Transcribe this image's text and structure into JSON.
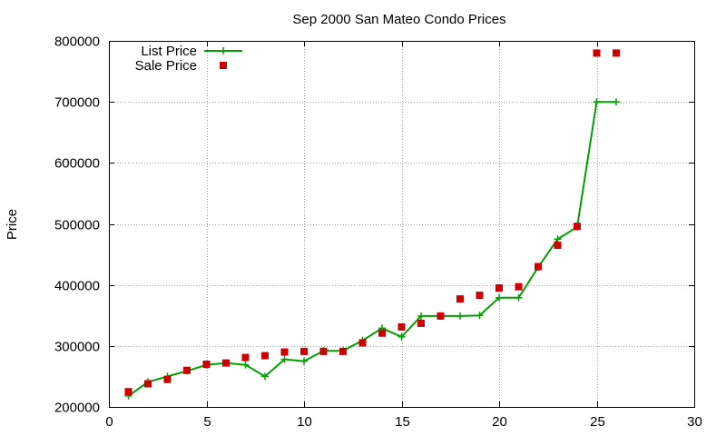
{
  "chart_data": {
    "type": "line",
    "title": "Sep 2000 San Mateo Condo Prices",
    "xlabel": "",
    "ylabel": "Price",
    "xlim": [
      0,
      30
    ],
    "ylim": [
      200000,
      800000
    ],
    "x_ticks": [
      "0",
      "5",
      "10",
      "15",
      "20",
      "25",
      "30"
    ],
    "y_ticks": [
      "200000",
      "300000",
      "400000",
      "500000",
      "600000",
      "700000",
      "800000"
    ],
    "grid": true,
    "legend_position": "top-left",
    "series": [
      {
        "name": "List Price",
        "style": "lines+crosses",
        "color": "#00a000",
        "points": [
          [
            1,
            218000
          ],
          [
            2,
            241000
          ],
          [
            3,
            250000
          ],
          [
            4,
            259000
          ],
          [
            5,
            269000
          ],
          [
            6,
            272000
          ],
          [
            7,
            269000
          ],
          [
            8,
            250000
          ],
          [
            9,
            278000
          ],
          [
            10,
            275000
          ],
          [
            11,
            292000
          ],
          [
            12,
            292000
          ],
          [
            13,
            309000
          ],
          [
            14,
            329000
          ],
          [
            15,
            315000
          ],
          [
            16,
            349000
          ],
          [
            17,
            349000
          ],
          [
            18,
            349000
          ],
          [
            19,
            350000
          ],
          [
            20,
            379000
          ],
          [
            21,
            379000
          ],
          [
            22,
            429000
          ],
          [
            23,
            475000
          ],
          [
            24,
            495000
          ],
          [
            25,
            700000
          ],
          [
            26,
            700000
          ]
        ]
      },
      {
        "name": "Sale Price",
        "style": "squares",
        "color": "#cc0000",
        "points": [
          [
            1,
            225000
          ],
          [
            2,
            238000
          ],
          [
            3,
            245000
          ],
          [
            4,
            260000
          ],
          [
            5,
            270000
          ],
          [
            6,
            272000
          ],
          [
            7,
            281000
          ],
          [
            8,
            284000
          ],
          [
            9,
            290000
          ],
          [
            10,
            291000
          ],
          [
            11,
            291000
          ],
          [
            12,
            291000
          ],
          [
            13,
            305000
          ],
          [
            14,
            321000
          ],
          [
            15,
            331000
          ],
          [
            16,
            337000
          ],
          [
            17,
            349000
          ],
          [
            18,
            377000
          ],
          [
            19,
            383000
          ],
          [
            20,
            395000
          ],
          [
            21,
            397000
          ],
          [
            22,
            430000
          ],
          [
            23,
            465000
          ],
          [
            24,
            496000
          ],
          [
            25,
            780000
          ],
          [
            26,
            780000
          ]
        ]
      }
    ]
  }
}
